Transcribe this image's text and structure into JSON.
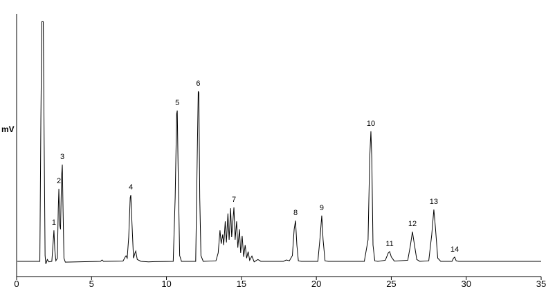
{
  "chart_data": {
    "type": "line",
    "y_label": "mV",
    "color": "#000000",
    "xlim": [
      0,
      35
    ],
    "xticks": [
      0,
      5,
      10,
      15,
      20,
      25,
      30,
      35
    ],
    "ylim": [
      0,
      100
    ],
    "x": [
      0.05,
      1.55,
      1.62,
      1.68,
      1.78,
      1.84,
      1.9,
      1.95,
      2.05,
      2.15,
      2.35,
      2.45,
      2.49,
      2.55,
      2.62,
      2.72,
      2.78,
      2.82,
      2.87,
      2.93,
      3.0,
      3.05,
      3.1,
      3.16,
      3.25,
      5.6,
      5.7,
      5.8,
      7.1,
      7.25,
      7.3,
      7.38,
      7.48,
      7.58,
      7.62,
      7.7,
      7.8,
      7.9,
      7.95,
      8.05,
      8.3,
      8.8,
      9.2,
      10.45,
      10.58,
      10.68,
      10.72,
      10.78,
      10.88,
      11.0,
      11.95,
      12.05,
      12.12,
      12.16,
      12.22,
      12.3,
      12.45,
      13.3,
      13.45,
      13.57,
      13.65,
      13.75,
      13.82,
      13.92,
      14.0,
      14.1,
      14.18,
      14.28,
      14.35,
      14.5,
      14.58,
      14.68,
      14.76,
      14.87,
      14.95,
      15.05,
      15.15,
      15.25,
      15.35,
      15.45,
      15.55,
      15.7,
      15.85,
      16.1,
      16.3,
      17.8,
      18.0,
      18.2,
      18.4,
      18.52,
      18.61,
      18.7,
      18.8,
      19.0,
      20.1,
      20.25,
      20.36,
      20.45,
      20.58,
      20.8,
      23.2,
      23.45,
      23.56,
      23.64,
      23.7,
      23.78,
      23.9,
      24.1,
      24.6,
      24.8,
      24.89,
      25.0,
      25.2,
      26.1,
      26.28,
      26.41,
      26.52,
      26.7,
      26.9,
      27.5,
      27.7,
      27.84,
      27.94,
      28.1,
      28.3,
      29.05,
      29.15,
      29.23,
      29.33,
      29.5,
      35
    ],
    "values": [
      5.8,
      5.8,
      60,
      97,
      97,
      50,
      8,
      4.8,
      6.5,
      5.6,
      5.8,
      14,
      17.6,
      10,
      6,
      7,
      26,
      33.4,
      20,
      18,
      38,
      42.6,
      25,
      7,
      5.5,
      5.8,
      6.3,
      5.8,
      5.9,
      7.5,
      7.9,
      7,
      15,
      30,
      31,
      20,
      7,
      9,
      9.7,
      6.5,
      5.8,
      5.6,
      5.7,
      5.8,
      30,
      62,
      63.2,
      40,
      8,
      5.8,
      5.8,
      45,
      70.5,
      70,
      30,
      8,
      5.8,
      6,
      9,
      17.6,
      12.5,
      16,
      12,
      21,
      13,
      24,
      14,
      26,
      15,
      26.3,
      14,
      21,
      11,
      18,
      9,
      15.5,
      7.5,
      12,
      7,
      9.5,
      6.2,
      7.8,
      5.6,
      6.5,
      5.8,
      5.8,
      6.3,
      6,
      8,
      18,
      21.3,
      12,
      6,
      5.8,
      5.8,
      15,
      23.2,
      14,
      6,
      5.8,
      5.8,
      14,
      45,
      55.3,
      45,
      12,
      6,
      5.8,
      6.2,
      9,
      9.5,
      7.5,
      5.9,
      6.2,
      12,
      17.1,
      13,
      6.5,
      5.8,
      6,
      16,
      25.5,
      19,
      7,
      5.8,
      5.8,
      7,
      7.4,
      6,
      5.8,
      5.8
    ],
    "peak_labels": [
      {
        "text": "1",
        "x": 2.49,
        "y": 17.6
      },
      {
        "text": "2",
        "x": 2.82,
        "y": 33.4
      },
      {
        "text": "3",
        "x": 3.05,
        "y": 42.6
      },
      {
        "text": "4",
        "x": 7.62,
        "y": 31
      },
      {
        "text": "5",
        "x": 10.72,
        "y": 63.2
      },
      {
        "text": "6",
        "x": 12.12,
        "y": 70.5
      },
      {
        "text": "7",
        "x": 14.5,
        "y": 26.3
      },
      {
        "text": "8",
        "x": 18.61,
        "y": 21.3
      },
      {
        "text": "9",
        "x": 20.36,
        "y": 23.2
      },
      {
        "text": "10",
        "x": 23.64,
        "y": 55.3
      },
      {
        "text": "11",
        "x": 24.89,
        "y": 9.5
      },
      {
        "text": "12",
        "x": 26.41,
        "y": 17.1
      },
      {
        "text": "13",
        "x": 27.84,
        "y": 25.5
      },
      {
        "text": "14",
        "x": 29.23,
        "y": 7.4
      }
    ]
  }
}
